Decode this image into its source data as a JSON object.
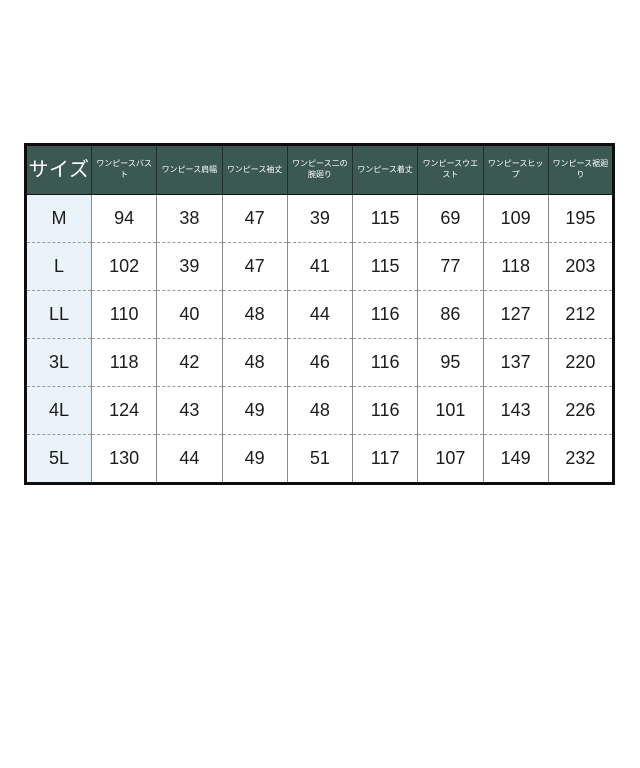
{
  "ui": {
    "colors": {
      "header-bg": "#3c5852",
      "header-text": "#ffffff",
      "size-col-bg": "#eaf2fa",
      "body-bg": "#ffffff",
      "body-text": "#1c1c1c",
      "outer-border": "#0d0d0d",
      "grid-line": "#8a8a8a",
      "dash-line": "#9a9a9a"
    }
  },
  "chart_data": {
    "type": "table",
    "title": "",
    "columns": [
      "サイズ",
      "ワンピースバスト",
      "ワンピース肩幅",
      "ワンピース袖丈",
      "ワンピース二の腕廻り",
      "ワンピース着丈",
      "ワンピースウエスト",
      "ワンピースヒップ",
      "ワンピース裾廻り"
    ],
    "rows": [
      [
        "M",
        94,
        38,
        47,
        39,
        115,
        69,
        109,
        195
      ],
      [
        "L",
        102,
        39,
        47,
        41,
        115,
        77,
        118,
        203
      ],
      [
        "LL",
        110,
        40,
        48,
        44,
        116,
        86,
        127,
        212
      ],
      [
        "3L",
        118,
        42,
        48,
        46,
        116,
        95,
        137,
        220
      ],
      [
        "4L",
        124,
        43,
        49,
        48,
        116,
        101,
        143,
        226
      ],
      [
        "5L",
        130,
        44,
        49,
        51,
        117,
        107,
        149,
        232
      ]
    ]
  }
}
